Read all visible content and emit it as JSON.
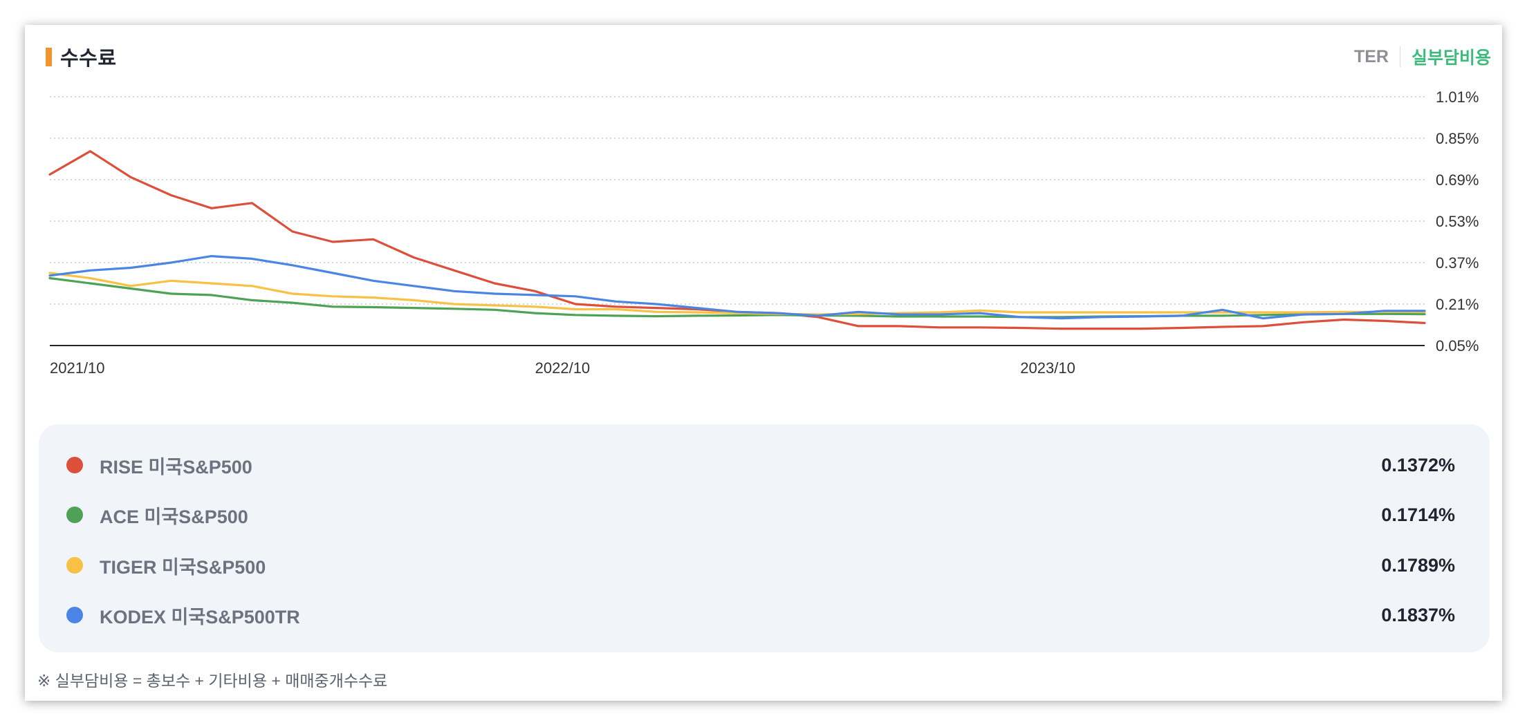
{
  "header": {
    "title": "수수료",
    "toggle_ter": "TER",
    "toggle_real": "실부담비용"
  },
  "footnote": "※ 실부담비용 = 총보수 + 기타비용 + 매매중개수수료",
  "colors": {
    "accent": "#f2932b",
    "active_toggle": "#3cba7b",
    "rise": "#dc4f3a",
    "ace": "#4ea255",
    "tiger": "#f7c145",
    "kodex": "#4a85e6"
  },
  "legend": [
    {
      "name": "RISE 미국S&P500",
      "value": "0.1372%",
      "color": "#dc4f3a"
    },
    {
      "name": "ACE 미국S&P500",
      "value": "0.1714%",
      "color": "#4ea255"
    },
    {
      "name": "TIGER 미국S&P500",
      "value": "0.1789%",
      "color": "#f7c145"
    },
    {
      "name": "KODEX 미국S&P500TR",
      "value": "0.1837%",
      "color": "#4a85e6"
    }
  ],
  "chart_data": {
    "type": "line",
    "title": "수수료",
    "xlabel": "",
    "ylabel": "",
    "ylim": [
      0.05,
      1.01
    ],
    "y_ticks": [
      "1.01%",
      "0.85%",
      "0.69%",
      "0.53%",
      "0.37%",
      "0.21%",
      "0.05%"
    ],
    "y_tick_values": [
      1.01,
      0.85,
      0.69,
      0.53,
      0.37,
      0.21,
      0.05
    ],
    "x_tick_labels": [
      "2021/10",
      "2022/10",
      "2023/10"
    ],
    "x_tick_indices": [
      0,
      12,
      24
    ],
    "grid": true,
    "series": [
      {
        "name": "RISE 미국S&P500",
        "color": "#dc4f3a",
        "values": [
          0.71,
          0.8,
          0.7,
          0.63,
          0.58,
          0.6,
          0.49,
          0.45,
          0.46,
          0.39,
          0.34,
          0.29,
          0.26,
          0.21,
          0.2,
          0.195,
          0.19,
          0.18,
          0.175,
          0.16,
          0.125,
          0.125,
          0.12,
          0.12,
          0.118,
          0.115,
          0.115,
          0.115,
          0.118,
          0.122,
          0.125,
          0.14,
          0.15,
          0.145,
          0.137
        ]
      },
      {
        "name": "ACE 미국S&P500",
        "color": "#4ea255",
        "values": [
          0.31,
          0.29,
          0.27,
          0.25,
          0.245,
          0.225,
          0.215,
          0.2,
          0.198,
          0.195,
          0.192,
          0.188,
          0.175,
          0.168,
          0.165,
          0.163,
          0.165,
          0.166,
          0.168,
          0.166,
          0.165,
          0.162,
          0.162,
          0.162,
          0.16,
          0.16,
          0.162,
          0.163,
          0.165,
          0.165,
          0.168,
          0.17,
          0.172,
          0.172,
          0.171
        ]
      },
      {
        "name": "TIGER 미국S&P500",
        "color": "#f7c145",
        "values": [
          0.33,
          0.31,
          0.28,
          0.3,
          0.29,
          0.28,
          0.25,
          0.24,
          0.235,
          0.225,
          0.21,
          0.205,
          0.2,
          0.19,
          0.19,
          0.18,
          0.178,
          0.175,
          0.172,
          0.17,
          0.172,
          0.175,
          0.178,
          0.185,
          0.178,
          0.178,
          0.178,
          0.178,
          0.178,
          0.178,
          0.178,
          0.178,
          0.18,
          0.18,
          0.179
        ]
      },
      {
        "name": "KODEX 미국S&P500TR",
        "color": "#4a85e6",
        "values": [
          0.32,
          0.34,
          0.35,
          0.37,
          0.395,
          0.385,
          0.36,
          0.33,
          0.3,
          0.28,
          0.26,
          0.25,
          0.245,
          0.24,
          0.22,
          0.21,
          0.195,
          0.18,
          0.175,
          0.165,
          0.18,
          0.17,
          0.17,
          0.175,
          0.16,
          0.155,
          0.16,
          0.162,
          0.165,
          0.188,
          0.155,
          0.17,
          0.172,
          0.184,
          0.184
        ]
      }
    ]
  }
}
